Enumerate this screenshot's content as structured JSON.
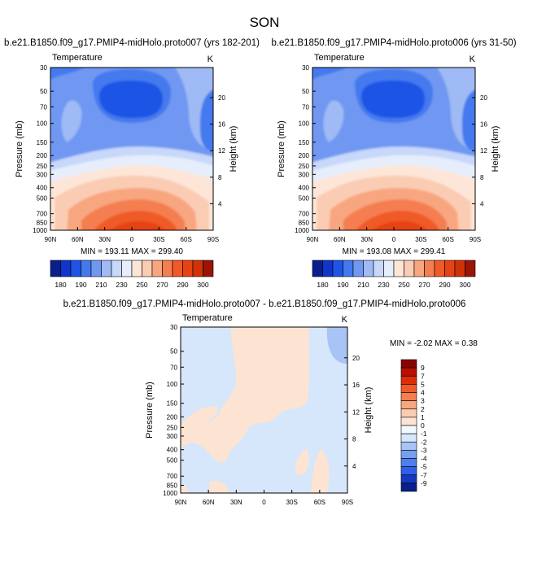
{
  "figure_title": "SON",
  "chart_data": [
    {
      "type": "heatmap",
      "panel": "top-left",
      "title": "b.e21.B1850.f09_g17.PMIP4-midHolo.proto007 (yrs 182-201)",
      "variable": "Temperature",
      "units": "K",
      "ylabel": "Pressure (mb)",
      "y2label": "Height (km)",
      "x_ticks": [
        "90N",
        "60N",
        "30N",
        "0",
        "30S",
        "60S",
        "90S"
      ],
      "y_ticks": [
        "30",
        "50",
        "70",
        "100",
        "150",
        "200",
        "250",
        "300",
        "400",
        "500",
        "700",
        "850",
        "1000"
      ],
      "y2_ticks": [
        "20",
        "16",
        "12",
        "8",
        "4"
      ],
      "stats": "MIN = 193.11   MAX = 299.40",
      "colorbar_labels": [
        "180",
        "190",
        "210",
        "230",
        "250",
        "270",
        "290",
        "300"
      ]
    },
    {
      "type": "heatmap",
      "panel": "top-right",
      "title": "b.e21.B1850.f09_g17.PMIP4-midHolo.proto006 (yrs 31-50)",
      "variable": "Temperature",
      "units": "K",
      "ylabel": "Pressure (mb)",
      "y2label": "Height (km)",
      "x_ticks": [
        "90N",
        "60N",
        "30N",
        "0",
        "30S",
        "60S",
        "90S"
      ],
      "y_ticks": [
        "30",
        "50",
        "70",
        "100",
        "150",
        "200",
        "250",
        "300",
        "400",
        "500",
        "700",
        "850",
        "1000"
      ],
      "y2_ticks": [
        "20",
        "16",
        "12",
        "8",
        "4"
      ],
      "stats": "MIN = 193.08   MAX = 299.41",
      "colorbar_labels": [
        "180",
        "190",
        "210",
        "230",
        "250",
        "270",
        "290",
        "300"
      ]
    },
    {
      "type": "heatmap",
      "panel": "bottom",
      "title": "b.e21.B1850.f09_g17.PMIP4-midHolo.proto007 - b.e21.B1850.f09_g17.PMIP4-midHolo.proto006",
      "variable": "Temperature",
      "units": "K",
      "ylabel": "Pressure (mb)",
      "y2label": "Height (km)",
      "x_ticks": [
        "90N",
        "60N",
        "30N",
        "0",
        "30S",
        "60S",
        "90S"
      ],
      "y_ticks": [
        "30",
        "50",
        "70",
        "100",
        "150",
        "200",
        "250",
        "300",
        "400",
        "500",
        "700",
        "850",
        "1000"
      ],
      "y2_ticks": [
        "20",
        "16",
        "12",
        "8",
        "4"
      ],
      "stats": "MIN =  -2.02   MAX =   0.38",
      "colorbar_labels": [
        "9",
        "7",
        "5",
        "4",
        "3",
        "2",
        "1",
        "0",
        "-1",
        "-2",
        "-3",
        "-4",
        "-5",
        "-7",
        "-9"
      ]
    }
  ],
  "colors": {
    "abs_scale": [
      "#0a1e8c",
      "#1035c8",
      "#1f55e6",
      "#4479ee",
      "#6f98f2",
      "#9fbaf5",
      "#c8d8fa",
      "#e6eefc",
      "#fde6d8",
      "#fbccb4",
      "#f8a680",
      "#f47e50",
      "#ef5a28",
      "#e64314",
      "#d03208",
      "#9a1505"
    ],
    "diff_scale": [
      "#8b0000",
      "#b81005",
      "#dc2e08",
      "#ef5a28",
      "#f47e50",
      "#f8a680",
      "#fbccb4",
      "#fde4d2",
      "#d6e6fb",
      "#a8c4f5",
      "#789ef0",
      "#4f7fec",
      "#2f5fe8",
      "#1438c0",
      "#0a1e8c"
    ]
  }
}
